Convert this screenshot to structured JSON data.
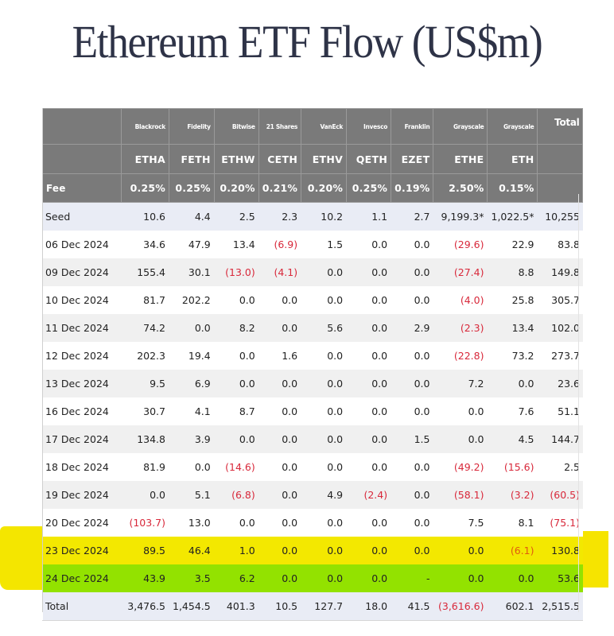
{
  "title": "Ethereum ETF Flow (US$m)",
  "table": {
    "issuers": [
      "Blackrock",
      "Fidelity",
      "Bitwise",
      "21 Shares",
      "VanEck",
      "Invesco",
      "Franklin",
      "Grayscale",
      "Grayscale"
    ],
    "total_header": "Total",
    "tickers": [
      "ETHA",
      "FETH",
      "ETHW",
      "CETH",
      "ETHV",
      "QETH",
      "EZET",
      "ETHE",
      "ETH"
    ],
    "fee_label": "Fee",
    "fees": [
      "0.25%",
      "0.25%",
      "0.20%",
      "0.21%",
      "0.20%",
      "0.25%",
      "0.19%",
      "2.50%",
      "0.15%"
    ],
    "rows": [
      {
        "label": "Seed",
        "values": [
          "10.6",
          "4.4",
          "2.5",
          "2.3",
          "10.2",
          "1.1",
          "2.7",
          "9,199.3*",
          "1,022.5*",
          "10,255"
        ]
      },
      {
        "label": "06 Dec 2024",
        "values": [
          "34.6",
          "47.9",
          "13.4",
          "(6.9)",
          "1.5",
          "0.0",
          "0.0",
          "(29.6)",
          "22.9",
          "83.8"
        ]
      },
      {
        "label": "09 Dec 2024",
        "values": [
          "155.4",
          "30.1",
          "(13.0)",
          "(4.1)",
          "0.0",
          "0.0",
          "0.0",
          "(27.4)",
          "8.8",
          "149.8"
        ]
      },
      {
        "label": "10 Dec 2024",
        "values": [
          "81.7",
          "202.2",
          "0.0",
          "0.0",
          "0.0",
          "0.0",
          "0.0",
          "(4.0)",
          "25.8",
          "305.7"
        ]
      },
      {
        "label": "11 Dec 2024",
        "values": [
          "74.2",
          "0.0",
          "8.2",
          "0.0",
          "5.6",
          "0.0",
          "2.9",
          "(2.3)",
          "13.4",
          "102.0"
        ]
      },
      {
        "label": "12 Dec 2024",
        "values": [
          "202.3",
          "19.4",
          "0.0",
          "1.6",
          "0.0",
          "0.0",
          "0.0",
          "(22.8)",
          "73.2",
          "273.7"
        ]
      },
      {
        "label": "13 Dec 2024",
        "values": [
          "9.5",
          "6.9",
          "0.0",
          "0.0",
          "0.0",
          "0.0",
          "0.0",
          "7.2",
          "0.0",
          "23.6"
        ]
      },
      {
        "label": "16 Dec 2024",
        "values": [
          "30.7",
          "4.1",
          "8.7",
          "0.0",
          "0.0",
          "0.0",
          "0.0",
          "0.0",
          "7.6",
          "51.1"
        ]
      },
      {
        "label": "17 Dec 2024",
        "values": [
          "134.8",
          "3.9",
          "0.0",
          "0.0",
          "0.0",
          "0.0",
          "1.5",
          "0.0",
          "4.5",
          "144.7"
        ]
      },
      {
        "label": "18 Dec 2024",
        "values": [
          "81.9",
          "0.0",
          "(14.6)",
          "0.0",
          "0.0",
          "0.0",
          "0.0",
          "(49.2)",
          "(15.6)",
          "2.5"
        ]
      },
      {
        "label": "19 Dec 2024",
        "values": [
          "0.0",
          "5.1",
          "(6.8)",
          "0.0",
          "4.9",
          "(2.4)",
          "0.0",
          "(58.1)",
          "(3.2)",
          "(60.5)"
        ]
      },
      {
        "label": "20 Dec 2024",
        "values": [
          "(103.7)",
          "13.0",
          "0.0",
          "0.0",
          "0.0",
          "0.0",
          "0.0",
          "7.5",
          "8.1",
          "(75.1)"
        ]
      },
      {
        "label": "23 Dec 2024",
        "values": [
          "89.5",
          "46.4",
          "1.0",
          "0.0",
          "0.0",
          "0.0",
          "0.0",
          "0.0",
          "(6.1)",
          "130.8"
        ]
      },
      {
        "label": "24 Dec 2024",
        "values": [
          "43.9",
          "3.5",
          "6.2",
          "0.0",
          "0.0",
          "0.0",
          "-",
          "0.0",
          "0.0",
          "53.6"
        ]
      },
      {
        "label": "Total",
        "values": [
          "3,476.5",
          "1,454.5",
          "401.3",
          "10.5",
          "127.7",
          "18.0",
          "41.5",
          "(3,616.6)",
          "602.1",
          "2,515.5"
        ]
      }
    ]
  },
  "colors": {
    "header_bg": "#7a7a7a",
    "negative": "#d8283a",
    "highlight_yellow": "#f3e800",
    "highlight_green": "#93e200",
    "seed_total_bg": "#e9ecf5"
  }
}
